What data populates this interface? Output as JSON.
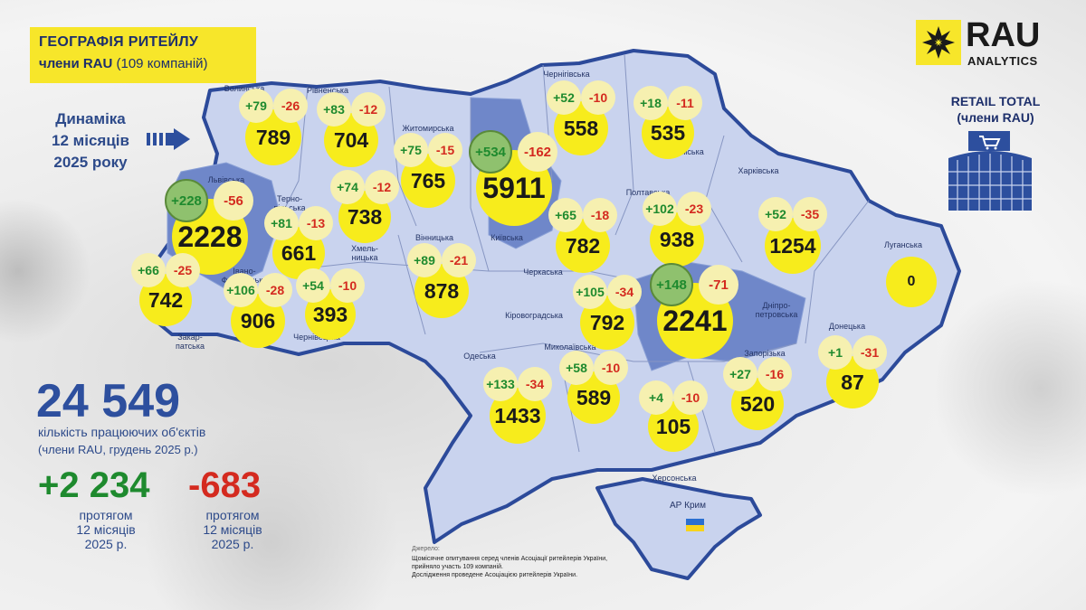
{
  "title": {
    "line1": "ГЕОГРАФІЯ РИТЕЙЛУ",
    "line2_bold": "члени RAU",
    "line2_rest": "(109 компаній)"
  },
  "dynamics_label": [
    "Динаміка",
    "12 місяців",
    "2025 року"
  ],
  "logo": {
    "name": "RAU",
    "sub": "ANALYTICS"
  },
  "retail_total": [
    "RETAIL TOTAL",
    "(члени RAU)"
  ],
  "summary": {
    "total": "24 549",
    "total_label": "кількість працюючих об'єктів",
    "total_note": "(члени RAU, грудень 2025 р.)",
    "opened": "+2 234",
    "closed": "-683",
    "period": [
      "протягом",
      "12 місяців",
      "2025 р."
    ]
  },
  "source": {
    "heading": "Джерело:",
    "lines": [
      "Щомісячне опитування серед членів Асоціації ритейлерів України,",
      "прийняло участь 109 компаній.",
      "Дослідження проведене Асоціацією ритейлерів України."
    ]
  },
  "crimea_label": "АР Крим",
  "colors": {
    "accent_yellow": "#f7ec1c",
    "positive": "#1e8a2e",
    "negative": "#d42a1f",
    "brand_blue": "#2d4f9e",
    "map_fill": "#c9d3ee",
    "map_highlight": "#6f87c9"
  },
  "regions": [
    {
      "name": "Волинська",
      "opened": "+79",
      "closed": "-26",
      "total": "789"
    },
    {
      "name": "Рівненська",
      "opened": "+83",
      "closed": "-12",
      "total": "704"
    },
    {
      "name": "Житомирська",
      "opened": "+75",
      "closed": "-15",
      "total": "765"
    },
    {
      "name": "Київська",
      "opened": "+534",
      "closed": "-162",
      "total": "5911",
      "highlight": true
    },
    {
      "name": "Чернігівська",
      "opened": "+52",
      "closed": "-10",
      "total": "558"
    },
    {
      "name": "Сумська",
      "opened": "+18",
      "closed": "-11",
      "total": "535"
    },
    {
      "name": "Львівська",
      "opened": "+228",
      "closed": "-56",
      "total": "2228",
      "highlight": true
    },
    {
      "name": "Тернопільська",
      "opened": "+81",
      "closed": "-13",
      "total": "661"
    },
    {
      "name": "Хмельницька",
      "opened": "+74",
      "closed": "-12",
      "total": "738"
    },
    {
      "name": "Вінницька",
      "opened": "+89",
      "closed": "-21",
      "total": "878"
    },
    {
      "name": "Черкаська",
      "opened": "+65",
      "closed": "-18",
      "total": "782"
    },
    {
      "name": "Полтавська",
      "opened": "+102",
      "closed": "-23",
      "total": "938"
    },
    {
      "name": "Харківська",
      "opened": "+52",
      "closed": "-35",
      "total": "1254"
    },
    {
      "name": "Луганська",
      "total": "0"
    },
    {
      "name": "Закарпатська",
      "opened": "+66",
      "closed": "-25",
      "total": "742"
    },
    {
      "name": "Івано-Франківська",
      "opened": "+106",
      "closed": "-28",
      "total": "906"
    },
    {
      "name": "Чернівецька",
      "opened": "+54",
      "closed": "-10",
      "total": "393"
    },
    {
      "name": "Кіровоградська",
      "opened": "+105",
      "closed": "-34",
      "total": "792"
    },
    {
      "name": "Дніпропетровська",
      "opened": "+148",
      "closed": "-71",
      "total": "2241",
      "highlight": true
    },
    {
      "name": "Донецька",
      "opened": "+1",
      "closed": "-31",
      "total": "87"
    },
    {
      "name": "Одеська",
      "opened": "+133",
      "closed": "-34",
      "total": "1433"
    },
    {
      "name": "Миколаївська",
      "opened": "+58",
      "closed": "-10",
      "total": "589"
    },
    {
      "name": "Херсонська",
      "opened": "+4",
      "closed": "-10",
      "total": "105"
    },
    {
      "name": "Запорізька",
      "opened": "+27",
      "closed": "-16",
      "total": "520"
    }
  ],
  "region_labels": [
    "Волинська",
    "Рівненська",
    "Житомирська",
    "Київська",
    "Чернігівська",
    "Сумська",
    "Львівська",
    "Терно-\nпільська",
    "Хмель-\nницька",
    "Вінницька",
    "Черкаська",
    "Полтавська",
    "Харківська",
    "Луганська",
    "Закар-\nпатська",
    "Івано-\nФранківська",
    "Чернівецька",
    "Кіровоградська",
    "Дніпро-\nпетровська",
    "Донецька",
    "Одеська",
    "Миколаївська",
    "Херсонська",
    "Запорізька"
  ]
}
